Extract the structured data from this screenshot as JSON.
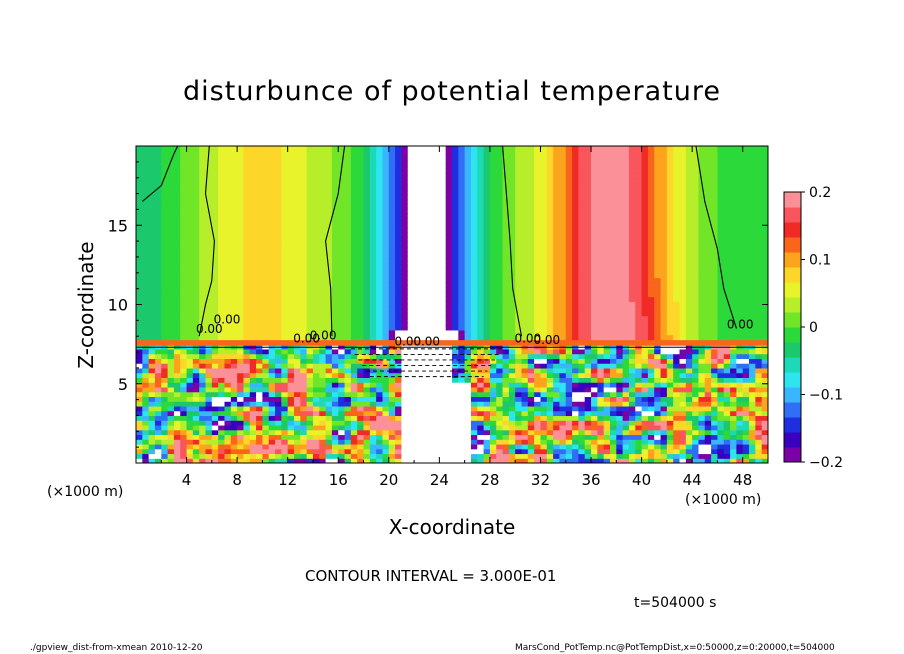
{
  "chart_data": {
    "type": "heatmap",
    "title": "disturbunce of potential temperature",
    "xlabel": "X-coordinate",
    "ylabel": "Z-coordinate",
    "x_unit": "(×1000 m)",
    "x_unit_right": "(×1000 m)",
    "xlim": [
      0,
      50
    ],
    "ylim": [
      0,
      20
    ],
    "x_ticks": [
      "4",
      "8",
      "12",
      "16",
      "20",
      "24",
      "28",
      "32",
      "36",
      "40",
      "44",
      "48"
    ],
    "y_ticks": [
      "5",
      "10",
      "15"
    ],
    "colorbar": {
      "range": [
        -0.2,
        0.2
      ],
      "tick_labels": [
        "0.2",
        "0.1",
        "0",
        "−0.1",
        "−0.2"
      ],
      "tick_values": [
        0.2,
        0.1,
        0,
        -0.1,
        -0.2
      ],
      "colors": [
        "#7b00a5",
        "#3a00c0",
        "#1f2fe0",
        "#2f6ff5",
        "#3ab6ff",
        "#2ee4ee",
        "#1ed9b8",
        "#1cc86c",
        "#2cd93a",
        "#71e628",
        "#b6ee2a",
        "#e9f32c",
        "#fdd62a",
        "#fca41d",
        "#f8651b",
        "#f02a24",
        "#f8555c",
        "#fc9098"
      ]
    },
    "contour_labels": [
      "0.00",
      "0.00",
      "0.00",
      "0.00",
      "0.00",
      "0.00",
      "0.00",
      "0.00",
      "0.00"
    ],
    "annotation": "CONTOUR INTERVAL = 3.000E-01",
    "time": "t=504000 s"
  },
  "footer": {
    "left": "./gpview_dist-from-xmean  2010-12-20",
    "right": "MarsCond_PotTemp.nc@PotTempDist,x=0:50000,z=0:20000,t=504000"
  }
}
